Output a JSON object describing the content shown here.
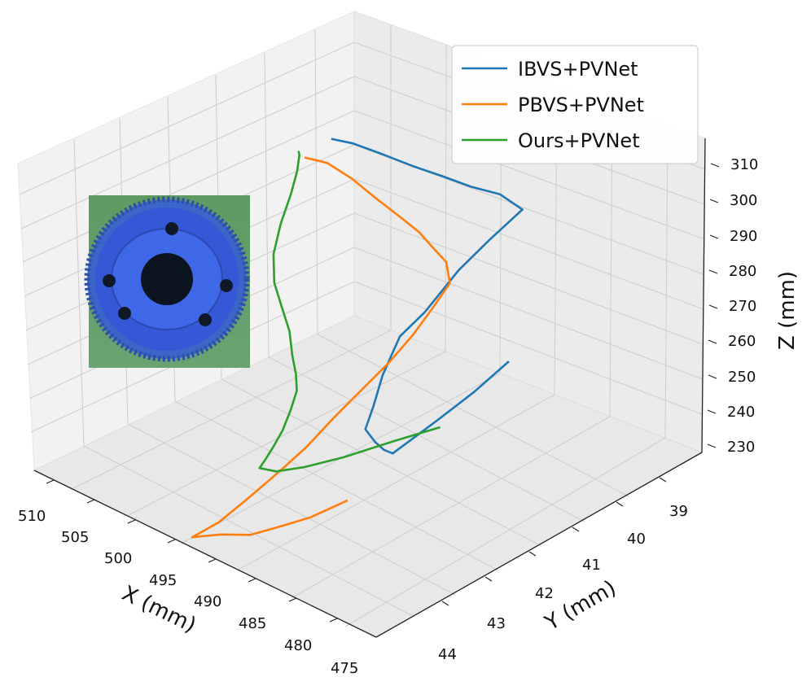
{
  "chart_data": {
    "type": "line3d",
    "xlabel": "X (mm)",
    "ylabel": "Y (mm)",
    "zlabel": "Z (mm)",
    "xlim": [
      475,
      510
    ],
    "ylim": [
      38.5,
      44
    ],
    "zlim": [
      230,
      310
    ],
    "x_ticks": [
      "510",
      "505",
      "500",
      "495",
      "490",
      "485",
      "480",
      "475"
    ],
    "y_ticks": [
      "39",
      "40",
      "41",
      "42",
      "43",
      "44"
    ],
    "z_ticks": [
      "230",
      "240",
      "250",
      "260",
      "270",
      "280",
      "290",
      "300",
      "310"
    ],
    "grid": true,
    "legend_position": "top-right",
    "inset": "blue-gear-photo",
    "series": [
      {
        "name": "IBVS+PVNet",
        "color": "#1f77b4",
        "xyz": [
          [
            491.5,
            39.0,
            241.3
          ],
          [
            492.0,
            39.5,
            237.2
          ],
          [
            492.8,
            40.0,
            233.2
          ],
          [
            493.6,
            40.6,
            229.2
          ],
          [
            493.9,
            40.7,
            230.7
          ],
          [
            494.2,
            40.8,
            233.3
          ],
          [
            494.6,
            40.9,
            237.1
          ],
          [
            494.4,
            40.8,
            242.5
          ],
          [
            494.1,
            40.7,
            250.0
          ],
          [
            493.6,
            40.5,
            258.8
          ],
          [
            492.9,
            40.2,
            263.2
          ],
          [
            491.9,
            39.8,
            271.7
          ],
          [
            491.2,
            39.4,
            276.8
          ],
          [
            490.3,
            39.0,
            282.1
          ],
          [
            490.8,
            39.3,
            288.2
          ],
          [
            491.4,
            39.7,
            293.1
          ],
          [
            491.9,
            40.1,
            298.8
          ],
          [
            492.5,
            40.5,
            304.3
          ],
          [
            493.2,
            40.9,
            310.2
          ],
          [
            493.8,
            41.3,
            315.9
          ],
          [
            494.2,
            41.6,
            319.3
          ]
        ]
      },
      {
        "name": "PBVS+PVNet",
        "color": "#ff7f0e",
        "xyz": [
          [
            491.0,
            41.8,
            230.1
          ],
          [
            492.3,
            42.2,
            227.9
          ],
          [
            493.7,
            42.5,
            226.6
          ],
          [
            494.8,
            42.8,
            226.0
          ],
          [
            496.0,
            43.1,
            227.5
          ],
          [
            497.1,
            43.4,
            228.3
          ],
          [
            496.2,
            43.1,
            230.5
          ],
          [
            495.4,
            42.8,
            234.2
          ],
          [
            494.7,
            42.5,
            237.8
          ],
          [
            494.3,
            42.3,
            240.1
          ],
          [
            494.0,
            42.0,
            242.7
          ],
          [
            493.7,
            41.6,
            247.0
          ],
          [
            493.4,
            41.2,
            250.8
          ],
          [
            492.9,
            40.8,
            255.3
          ],
          [
            492.3,
            40.5,
            260.5
          ],
          [
            491.6,
            40.3,
            266.2
          ],
          [
            491.0,
            40.1,
            271.8
          ],
          [
            490.8,
            40.2,
            278.4
          ],
          [
            490.9,
            40.4,
            283.6
          ],
          [
            491.2,
            40.6,
            289.3
          ],
          [
            491.6,
            40.9,
            296.0
          ],
          [
            492.0,
            41.2,
            302.5
          ],
          [
            492.7,
            41.5,
            309.6
          ],
          [
            493.4,
            41.8,
            315.6
          ],
          [
            493.9,
            42.1,
            319.1
          ]
        ]
      },
      {
        "name": "Ours+PVNet",
        "color": "#2ca02c",
        "xyz": [
          [
            493.0,
            39.9,
            230.5
          ],
          [
            494.0,
            40.5,
            231.2
          ],
          [
            495.0,
            41.2,
            232.0
          ],
          [
            496.0,
            41.7,
            232.8
          ],
          [
            497.0,
            42.0,
            233.3
          ],
          [
            497.5,
            42.2,
            235.4
          ],
          [
            497.0,
            42.2,
            237.8
          ],
          [
            496.7,
            42.1,
            241.0
          ],
          [
            496.4,
            42.0,
            244.6
          ],
          [
            496.2,
            41.9,
            249.3
          ],
          [
            496.2,
            41.8,
            253.4
          ],
          [
            496.3,
            41.8,
            257.5
          ],
          [
            496.7,
            41.8,
            262.2
          ],
          [
            497.0,
            41.8,
            268.1
          ],
          [
            497.2,
            41.9,
            275.0
          ],
          [
            497.4,
            42.0,
            282.1
          ],
          [
            497.5,
            42.0,
            289.4
          ],
          [
            497.4,
            41.9,
            296.6
          ],
          [
            497.0,
            41.8,
            303.8
          ],
          [
            496.4,
            41.8,
            310.4
          ],
          [
            495.6,
            41.9,
            316.2
          ],
          [
            495.1,
            42.0,
            318.7
          ]
        ]
      }
    ]
  }
}
